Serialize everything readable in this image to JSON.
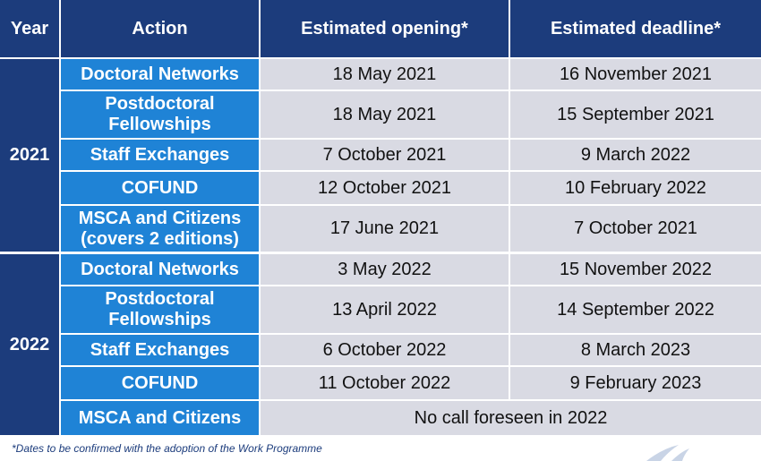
{
  "header": {
    "year": "Year",
    "action": "Action",
    "opening": "Estimated opening*",
    "deadline": "Estimated deadline*"
  },
  "groups": [
    {
      "year": "2021",
      "rows": [
        {
          "action": "Doctoral Networks",
          "opening": "18 May 2021",
          "deadline": "16 November 2021"
        },
        {
          "action": "Postdoctoral Fellowships",
          "opening": "18 May 2021",
          "deadline": "15 September 2021"
        },
        {
          "action": "Staff Exchanges",
          "opening": "7 October 2021",
          "deadline": "9 March 2022"
        },
        {
          "action": "COFUND",
          "opening": "12 October 2021",
          "deadline": "10 February 2022"
        },
        {
          "action": "MSCA and Citizens (covers 2 editions)",
          "opening": "17 June 2021",
          "deadline": "7 October 2021"
        }
      ]
    },
    {
      "year": "2022",
      "rows": [
        {
          "action": "Doctoral Networks",
          "opening": "3 May 2022",
          "deadline": "15 November 2022"
        },
        {
          "action": "Postdoctoral Fellowships",
          "opening": "13 April 2022",
          "deadline": "14 September 2022"
        },
        {
          "action": "Staff Exchanges",
          "opening": "6 October 2022",
          "deadline": "8 March 2023"
        },
        {
          "action": "COFUND",
          "opening": "11 October 2022",
          "deadline": "9 February 2023"
        },
        {
          "action": "MSCA and Citizens",
          "merged": "No call foreseen in 2022"
        }
      ]
    }
  ],
  "footnote": "*Dates to be confirmed with the adoption of the Work Programme"
}
